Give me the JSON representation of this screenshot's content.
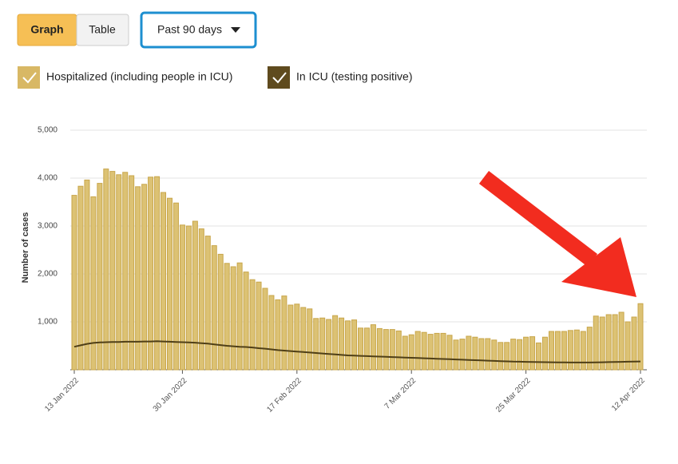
{
  "ui": {
    "buttons": [
      "Graph",
      "Table"
    ],
    "dropdown": "Past 90 days"
  },
  "chart_data": {
    "type": "bar",
    "y_label": "Number of cases",
    "categories": [
      "13 Jan 2022",
      null,
      null,
      null,
      null,
      null,
      null,
      null,
      null,
      null,
      null,
      null,
      null,
      null,
      null,
      null,
      null,
      "30 Jan 2022",
      null,
      null,
      null,
      null,
      null,
      null,
      null,
      null,
      null,
      null,
      null,
      null,
      null,
      null,
      null,
      null,
      null,
      "17 Feb 2022",
      null,
      null,
      null,
      null,
      null,
      null,
      null,
      null,
      null,
      null,
      null,
      null,
      null,
      null,
      null,
      null,
      null,
      "7 Mar 2022",
      null,
      null,
      null,
      null,
      null,
      null,
      null,
      null,
      null,
      null,
      null,
      null,
      null,
      null,
      null,
      null,
      null,
      "25 Mar 2022",
      null,
      null,
      null,
      null,
      null,
      null,
      null,
      null,
      null,
      null,
      null,
      null,
      null,
      null,
      null,
      null,
      null,
      "12 Apr 2022"
    ],
    "series": [
      {
        "name": "Hospitalized (including people in ICU)",
        "type": "bar",
        "color": "#dcc274",
        "edge": "#c8a64a",
        "values": [
          3640,
          3830,
          3960,
          3610,
          3890,
          4190,
          4140,
          4070,
          4120,
          4050,
          3820,
          3870,
          4020,
          4030,
          3700,
          3580,
          3480,
          3020,
          3000,
          3100,
          2940,
          2790,
          2590,
          2410,
          2220,
          2150,
          2230,
          2040,
          1880,
          1830,
          1700,
          1550,
          1460,
          1540,
          1350,
          1370,
          1300,
          1270,
          1070,
          1080,
          1050,
          1130,
          1080,
          1020,
          1040,
          870,
          870,
          940,
          860,
          840,
          840,
          810,
          700,
          730,
          800,
          780,
          740,
          760,
          760,
          720,
          620,
          640,
          700,
          680,
          650,
          650,
          620,
          570,
          570,
          640,
          630,
          680,
          690,
          560,
          680,
          800,
          800,
          800,
          820,
          830,
          800,
          890,
          1120,
          1100,
          1150,
          1150,
          1200,
          1000,
          1100,
          1380
        ]
      },
      {
        "name": "In ICU (testing positive)",
        "type": "line",
        "color": "#4f3f17",
        "values": [
          480,
          510,
          540,
          560,
          570,
          575,
          580,
          580,
          585,
          585,
          585,
          590,
          590,
          595,
          590,
          585,
          580,
          575,
          570,
          565,
          555,
          545,
          530,
          515,
          500,
          490,
          480,
          475,
          465,
          450,
          440,
          425,
          410,
          400,
          390,
          380,
          370,
          360,
          350,
          340,
          330,
          320,
          310,
          300,
          295,
          290,
          285,
          280,
          275,
          270,
          265,
          260,
          255,
          250,
          245,
          240,
          235,
          230,
          225,
          220,
          215,
          210,
          205,
          200,
          195,
          190,
          185,
          180,
          175,
          170,
          168,
          165,
          162,
          160,
          158,
          156,
          155,
          154,
          153,
          152,
          152,
          153,
          155,
          157,
          160,
          162,
          165,
          168,
          170,
          172
        ]
      }
    ],
    "legend_colors": [
      "#d8b865",
      "#5f4b1e"
    ],
    "ylim": [
      0,
      5000
    ],
    "yticks": [
      {
        "value": 1000,
        "label": "1,000"
      },
      {
        "value": 2000,
        "label": "2,000"
      },
      {
        "value": 3000,
        "label": "3,000"
      },
      {
        "value": 4000,
        "label": "4,000"
      },
      {
        "value": 5000,
        "label": "5,000"
      }
    ],
    "grid": true
  }
}
